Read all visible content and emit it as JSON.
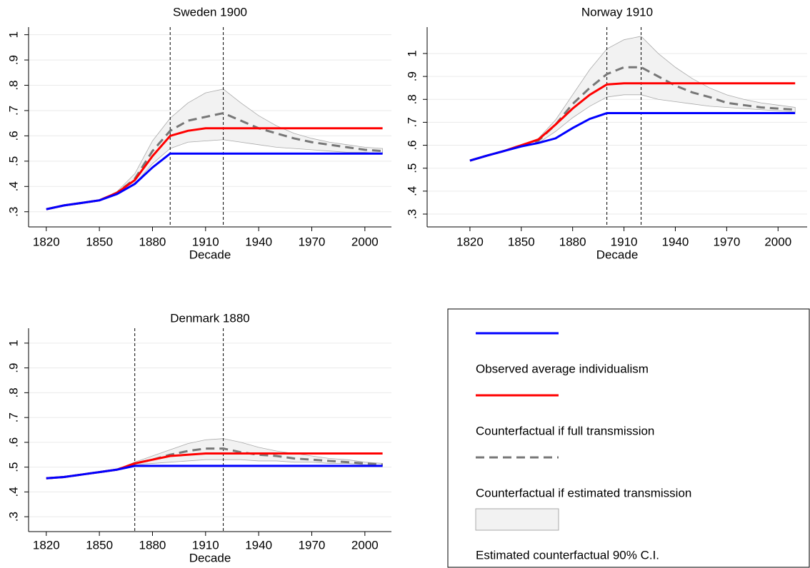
{
  "chart_data": [
    {
      "type": "line",
      "title": "Sweden 1900",
      "xlabel": "Decade",
      "x": [
        1820,
        1830,
        1840,
        1850,
        1860,
        1870,
        1880,
        1890,
        1900,
        1910,
        1920,
        1930,
        1940,
        1950,
        1960,
        1970,
        1980,
        1990,
        2000,
        2010
      ],
      "xlim": [
        1810,
        2015
      ],
      "xticks": [
        1820,
        1850,
        1880,
        1910,
        1940,
        1970,
        2000
      ],
      "ylim": [
        0.24,
        1.03
      ],
      "yticks": [
        {
          "value": 0.3,
          "label": ".3"
        },
        {
          "value": 0.4,
          "label": ".4"
        },
        {
          "value": 0.5,
          "label": ".5"
        },
        {
          "value": 0.6,
          "label": ".6"
        },
        {
          "value": 0.7,
          "label": ".7"
        },
        {
          "value": 0.8,
          "label": ".8"
        },
        {
          "value": 0.9,
          "label": ".9"
        },
        1
      ],
      "grid": true,
      "vlines": [
        1890,
        1920
      ],
      "series": [
        {
          "color": "#0000ff",
          "style": "solid",
          "values": [
            0.31,
            0.325,
            0.335,
            0.345,
            0.37,
            0.41,
            0.475,
            0.53,
            0.53,
            0.53,
            0.53,
            0.53,
            0.53,
            0.53,
            0.53,
            0.53,
            0.53,
            0.53,
            0.53,
            0.53
          ]
        },
        {
          "color": "#ff0000",
          "style": "solid",
          "values": [
            0.31,
            0.325,
            0.335,
            0.345,
            0.375,
            0.425,
            0.52,
            0.6,
            0.62,
            0.63,
            0.63,
            0.63,
            0.63,
            0.63,
            0.63,
            0.63,
            0.63,
            0.63,
            0.63,
            0.63
          ]
        },
        {
          "color": "#777777",
          "style": "dashed",
          "values": [
            0.31,
            0.325,
            0.335,
            0.345,
            0.375,
            0.43,
            0.54,
            0.62,
            0.66,
            0.675,
            0.69,
            0.66,
            0.63,
            0.61,
            0.59,
            0.575,
            0.565,
            0.555,
            0.545,
            0.54
          ]
        },
        {
          "color": "#f2f2f2",
          "style": "band",
          "upper": [
            0.31,
            0.325,
            0.335,
            0.345,
            0.38,
            0.45,
            0.58,
            0.67,
            0.73,
            0.77,
            0.785,
            0.73,
            0.68,
            0.64,
            0.61,
            0.59,
            0.575,
            0.565,
            0.555,
            0.55
          ],
          "lower": [
            0.31,
            0.325,
            0.335,
            0.345,
            0.37,
            0.41,
            0.49,
            0.55,
            0.575,
            0.58,
            0.585,
            0.575,
            0.565,
            0.555,
            0.55,
            0.545,
            0.54,
            0.535,
            0.535,
            0.53
          ]
        }
      ]
    },
    {
      "type": "line",
      "title": "Norway 1910",
      "xlabel": "Decade",
      "x": [
        1820,
        1830,
        1840,
        1850,
        1860,
        1870,
        1880,
        1890,
        1900,
        1910,
        1920,
        1930,
        1940,
        1950,
        1960,
        1970,
        1980,
        1990,
        2000,
        2010
      ],
      "xlim": [
        1795,
        2017
      ],
      "xticks": [
        1820,
        1850,
        1880,
        1910,
        1940,
        1970,
        2000
      ],
      "ylim": [
        0.244,
        1.115
      ],
      "yticks": [
        {
          "value": 0.3,
          "label": ".3"
        },
        {
          "value": 0.4,
          "label": ".4"
        },
        {
          "value": 0.5,
          "label": ".5"
        },
        {
          "value": 0.6,
          "label": ".6"
        },
        {
          "value": 0.7,
          "label": ".7"
        },
        {
          "value": 0.8,
          "label": ".8"
        },
        {
          "value": 0.9,
          "label": ".9"
        },
        1
      ],
      "grid": true,
      "vlines": [
        1900,
        1920
      ],
      "series": [
        {
          "color": "#0000ff",
          "style": "solid",
          "values": [
            0.533,
            0.555,
            0.575,
            0.595,
            0.61,
            0.63,
            0.675,
            0.715,
            0.74,
            0.74,
            0.74,
            0.74,
            0.74,
            0.74,
            0.74,
            0.74,
            0.74,
            0.74,
            0.74,
            0.74
          ]
        },
        {
          "color": "#ff0000",
          "style": "solid",
          "values": [
            0.533,
            0.555,
            0.575,
            0.6,
            0.625,
            0.69,
            0.76,
            0.82,
            0.865,
            0.87,
            0.87,
            0.87,
            0.87,
            0.87,
            0.87,
            0.87,
            0.87,
            0.87,
            0.87,
            0.87
          ]
        },
        {
          "color": "#777777",
          "style": "dashed",
          "values": [
            0.533,
            0.555,
            0.575,
            0.6,
            0.62,
            0.69,
            0.78,
            0.85,
            0.91,
            0.94,
            0.94,
            0.9,
            0.86,
            0.83,
            0.81,
            0.785,
            0.775,
            0.765,
            0.76,
            0.755
          ]
        },
        {
          "color": "#f2f2f2",
          "style": "band",
          "upper": [
            0.533,
            0.555,
            0.575,
            0.6,
            0.63,
            0.71,
            0.82,
            0.93,
            1.02,
            1.06,
            1.075,
            1.0,
            0.94,
            0.89,
            0.85,
            0.82,
            0.8,
            0.785,
            0.775,
            0.765
          ],
          "lower": [
            0.533,
            0.555,
            0.575,
            0.595,
            0.61,
            0.66,
            0.72,
            0.77,
            0.81,
            0.82,
            0.82,
            0.8,
            0.79,
            0.78,
            0.77,
            0.765,
            0.76,
            0.755,
            0.75,
            0.745
          ]
        }
      ]
    },
    {
      "type": "line",
      "title": "Denmark 1880",
      "xlabel": "Decade",
      "x": [
        1820,
        1830,
        1840,
        1850,
        1860,
        1870,
        1880,
        1890,
        1900,
        1910,
        1920,
        1930,
        1940,
        1950,
        1960,
        1970,
        1980,
        1990,
        2000,
        2010
      ],
      "xlim": [
        1810,
        2015
      ],
      "xticks": [
        1820,
        1850,
        1880,
        1910,
        1940,
        1970,
        2000
      ],
      "ylim": [
        0.24,
        1.06
      ],
      "yticks": [
        {
          "value": 0.3,
          "label": ".3"
        },
        {
          "value": 0.4,
          "label": ".4"
        },
        {
          "value": 0.5,
          "label": ".5"
        },
        {
          "value": 0.6,
          "label": ".6"
        },
        {
          "value": 0.7,
          "label": ".7"
        },
        {
          "value": 0.8,
          "label": ".8"
        },
        {
          "value": 0.9,
          "label": ".9"
        },
        1
      ],
      "grid": true,
      "vlines": [
        1870,
        1920
      ],
      "series": [
        {
          "color": "#0000ff",
          "style": "solid",
          "values": [
            0.455,
            0.46,
            0.47,
            0.48,
            0.49,
            0.505,
            0.505,
            0.505,
            0.505,
            0.505,
            0.505,
            0.505,
            0.505,
            0.505,
            0.505,
            0.505,
            0.505,
            0.505,
            0.505,
            0.505
          ]
        },
        {
          "color": "#ff0000",
          "style": "solid",
          "values": [
            0.455,
            0.46,
            0.47,
            0.48,
            0.49,
            0.515,
            0.53,
            0.545,
            0.55,
            0.555,
            0.555,
            0.555,
            0.555,
            0.555,
            0.555,
            0.555,
            0.555,
            0.555,
            0.555,
            0.555
          ]
        },
        {
          "color": "#777777",
          "style": "dashed",
          "values": [
            0.455,
            0.46,
            0.47,
            0.48,
            0.49,
            0.515,
            0.53,
            0.55,
            0.565,
            0.575,
            0.575,
            0.56,
            0.55,
            0.545,
            0.535,
            0.53,
            0.525,
            0.52,
            0.515,
            0.51
          ]
        },
        {
          "color": "#f2f2f2",
          "style": "band",
          "upper": [
            0.455,
            0.46,
            0.47,
            0.48,
            0.49,
            0.52,
            0.545,
            0.57,
            0.595,
            0.61,
            0.615,
            0.6,
            0.58,
            0.565,
            0.555,
            0.545,
            0.535,
            0.53,
            0.52,
            0.515
          ],
          "lower": [
            0.455,
            0.46,
            0.47,
            0.48,
            0.49,
            0.51,
            0.515,
            0.52,
            0.525,
            0.53,
            0.53,
            0.53,
            0.525,
            0.525,
            0.52,
            0.52,
            0.515,
            0.515,
            0.51,
            0.505
          ]
        }
      ]
    }
  ],
  "legend": [
    "Observed average individualism",
    "Counterfactual if full transmission",
    "Counterfactual if estimated transmission",
    "Estimated counterfactual 90% C.I."
  ]
}
